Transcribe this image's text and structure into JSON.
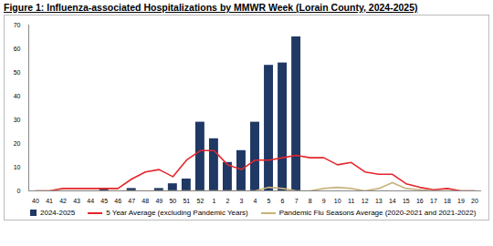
{
  "chart_data": {
    "type": "bar",
    "title": "Figure 1: Influenza-associated Hospitalizations by MMWR Week (Lorain County, 2024-2025)",
    "categories": [
      "40",
      "41",
      "42",
      "43",
      "44",
      "45",
      "46",
      "47",
      "48",
      "49",
      "50",
      "51",
      "52",
      "1",
      "2",
      "3",
      "4",
      "5",
      "6",
      "7",
      "8",
      "9",
      "10",
      "11",
      "12",
      "13",
      "14",
      "15",
      "16",
      "17",
      "18",
      "19",
      "20"
    ],
    "series": [
      {
        "name": "2024-2025",
        "type": "bar",
        "color": "#1f3864",
        "values": [
          0,
          0,
          0,
          0,
          0,
          1,
          0,
          1,
          0,
          1,
          3,
          5,
          29,
          22,
          12,
          17,
          29,
          53,
          54,
          65,
          null,
          null,
          null,
          null,
          null,
          null,
          null,
          null,
          null,
          null,
          null,
          null,
          null
        ]
      },
      {
        "name": "5 Year Average (excluding Pandemic Years)",
        "type": "line",
        "color": "#e3262b",
        "values": [
          0,
          0,
          1,
          1,
          1,
          1,
          1,
          5,
          8,
          9,
          6,
          13,
          17,
          17,
          11,
          9,
          13,
          13,
          14,
          15,
          14,
          14,
          11,
          12,
          8,
          7,
          7,
          3,
          1.5,
          0.5,
          1,
          0,
          0
        ]
      },
      {
        "name": "Pandemic Flu Seasons Average (2020-2021 and 2021-2022)",
        "type": "line",
        "color": "#c8b27d",
        "values": [
          0,
          0,
          0,
          0,
          0,
          0,
          0,
          0,
          0,
          0,
          0,
          0,
          0,
          0,
          0,
          0,
          0,
          1.5,
          1,
          0,
          0,
          1,
          1.5,
          1,
          0,
          1,
          3.5,
          1,
          0.5,
          0,
          0,
          0,
          0
        ]
      }
    ],
    "ylim": [
      0,
      70
    ],
    "yticks": [
      0,
      10,
      20,
      30,
      40,
      50,
      60,
      70
    ],
    "grid": false,
    "legend": "bottom"
  }
}
